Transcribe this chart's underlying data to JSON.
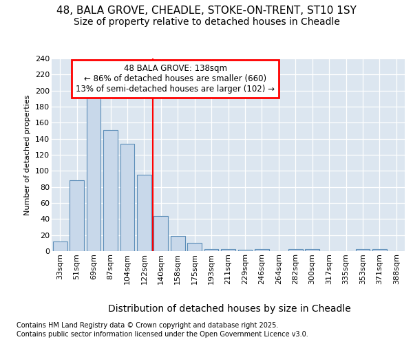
{
  "title_line1": "48, BALA GROVE, CHEADLE, STOKE-ON-TRENT, ST10 1SY",
  "title_line2": "Size of property relative to detached houses in Cheadle",
  "xlabel": "Distribution of detached houses by size in Cheadle",
  "ylabel": "Number of detached properties",
  "categories": [
    "33sqm",
    "51sqm",
    "69sqm",
    "87sqm",
    "104sqm",
    "122sqm",
    "140sqm",
    "158sqm",
    "175sqm",
    "193sqm",
    "211sqm",
    "229sqm",
    "246sqm",
    "264sqm",
    "282sqm",
    "300sqm",
    "317sqm",
    "335sqm",
    "353sqm",
    "371sqm",
    "388sqm"
  ],
  "values": [
    12,
    88,
    196,
    151,
    134,
    95,
    44,
    19,
    10,
    3,
    3,
    2,
    3,
    0,
    3,
    3,
    0,
    0,
    3,
    3,
    0
  ],
  "bar_color": "#c8d8ea",
  "bar_edge_color": "#5b8db8",
  "red_line_x": 5.5,
  "annotation_title": "48 BALA GROVE: 138sqm",
  "annotation_line1": "← 86% of detached houses are smaller (660)",
  "annotation_line2": "13% of semi-detached houses are larger (102) →",
  "footer_line1": "Contains HM Land Registry data © Crown copyright and database right 2025.",
  "footer_line2": "Contains public sector information licensed under the Open Government Licence v3.0.",
  "fig_bg_color": "#ffffff",
  "plot_bg_color": "#dce6f0",
  "grid_color": "#ffffff",
  "ylim_max": 240,
  "ytick_step": 20,
  "title1_fontsize": 11,
  "title2_fontsize": 10,
  "xlabel_fontsize": 10,
  "ylabel_fontsize": 8,
  "tick_fontsize": 8,
  "ann_fontsize": 8.5,
  "footer_fontsize": 7
}
